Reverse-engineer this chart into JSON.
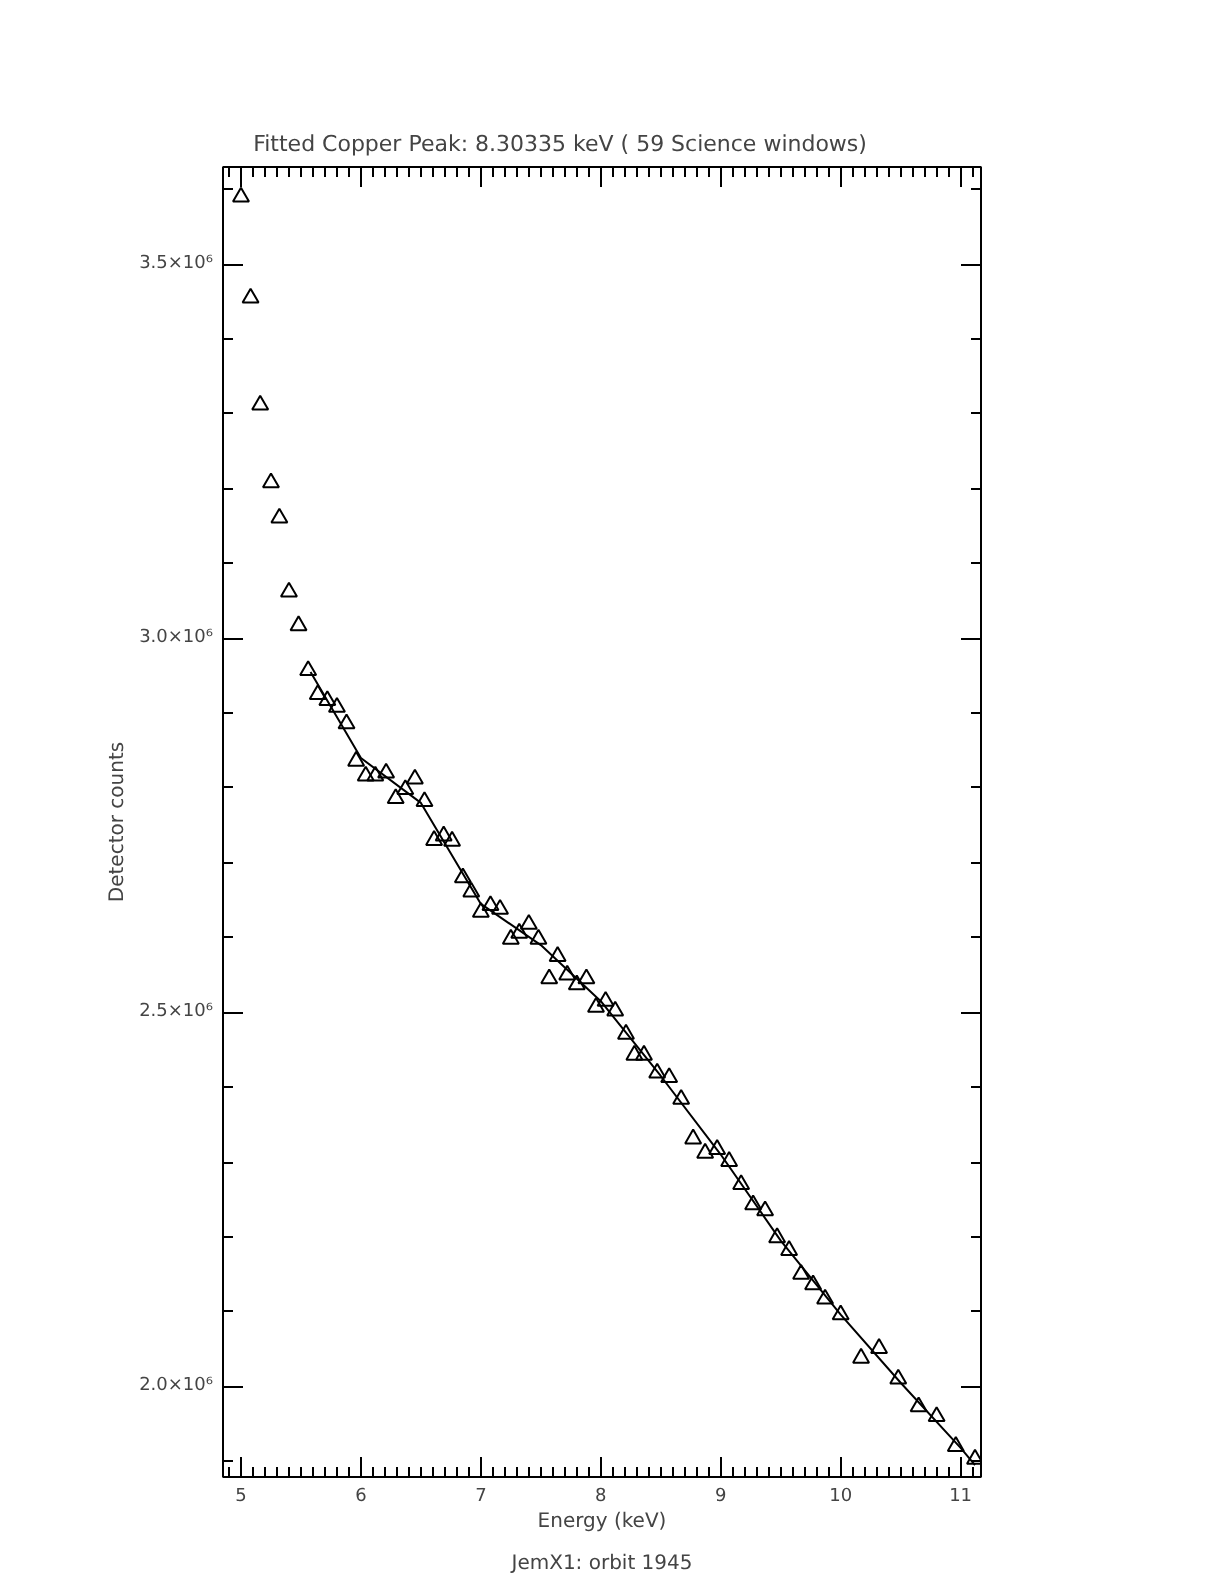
{
  "chart_data": {
    "type": "scatter",
    "title": "Fitted Copper Peak:        8.30335 keV (      59 Science windows)",
    "xlabel": "Energy (keV)",
    "ylabel": "Detector counts",
    "annotations": [
      "JemX1: orbit 1945"
    ],
    "xlim": [
      4.85,
      11.17
    ],
    "ylim": [
      1879000,
      3630000
    ],
    "xticks": [
      {
        "value": 4.9,
        "label": null
      },
      5,
      {
        "value": 5.1,
        "label": null
      },
      {
        "value": 5.2,
        "label": null
      },
      {
        "value": 5.3,
        "label": null
      },
      {
        "value": 5.4,
        "label": null
      },
      {
        "value": 5.5,
        "label": null
      },
      {
        "value": 5.6,
        "label": null
      },
      {
        "value": 5.7,
        "label": null
      },
      {
        "value": 5.8,
        "label": null
      },
      {
        "value": 5.9,
        "label": null
      },
      6,
      {
        "value": 6.1,
        "label": null
      },
      {
        "value": 6.2,
        "label": null
      },
      {
        "value": 6.3,
        "label": null
      },
      {
        "value": 6.4,
        "label": null
      },
      {
        "value": 6.5,
        "label": null
      },
      {
        "value": 6.6,
        "label": null
      },
      {
        "value": 6.7,
        "label": null
      },
      {
        "value": 6.8,
        "label": null
      },
      {
        "value": 6.9,
        "label": null
      },
      7,
      {
        "value": 7.1,
        "label": null
      },
      {
        "value": 7.2,
        "label": null
      },
      {
        "value": 7.3,
        "label": null
      },
      {
        "value": 7.4,
        "label": null
      },
      {
        "value": 7.5,
        "label": null
      },
      {
        "value": 7.6,
        "label": null
      },
      {
        "value": 7.7,
        "label": null
      },
      {
        "value": 7.8,
        "label": null
      },
      {
        "value": 7.9,
        "label": null
      },
      8,
      {
        "value": 8.1,
        "label": null
      },
      {
        "value": 8.2,
        "label": null
      },
      {
        "value": 8.3,
        "label": null
      },
      {
        "value": 8.4,
        "label": null
      },
      {
        "value": 8.5,
        "label": null
      },
      {
        "value": 8.6,
        "label": null
      },
      {
        "value": 8.7,
        "label": null
      },
      {
        "value": 8.8,
        "label": null
      },
      {
        "value": 8.9,
        "label": null
      },
      9,
      {
        "value": 9.1,
        "label": null
      },
      {
        "value": 9.2,
        "label": null
      },
      {
        "value": 9.3,
        "label": null
      },
      {
        "value": 9.4,
        "label": null
      },
      {
        "value": 9.5,
        "label": null
      },
      {
        "value": 9.6,
        "label": null
      },
      {
        "value": 9.7,
        "label": null
      },
      {
        "value": 9.8,
        "label": null
      },
      {
        "value": 9.9,
        "label": null
      },
      10,
      {
        "value": 10.1,
        "label": null
      },
      {
        "value": 10.2,
        "label": null
      },
      {
        "value": 10.3,
        "label": null
      },
      {
        "value": 10.4,
        "label": null
      },
      {
        "value": 10.5,
        "label": null
      },
      {
        "value": 10.6,
        "label": null
      },
      {
        "value": 10.7,
        "label": null
      },
      {
        "value": 10.8,
        "label": null
      },
      {
        "value": 10.9,
        "label": null
      },
      11,
      {
        "value": 11.1,
        "label": null
      }
    ],
    "yticks": [
      {
        "value": 1900000,
        "label": null
      },
      {
        "value": 2000000,
        "label": "2.0×10⁶"
      },
      {
        "value": 2100000,
        "label": null
      },
      {
        "value": 2200000,
        "label": null
      },
      {
        "value": 2300000,
        "label": null
      },
      {
        "value": 2400000,
        "label": null
      },
      {
        "value": 2500000,
        "label": "2.5×10⁶"
      },
      {
        "value": 2600000,
        "label": null
      },
      {
        "value": 2700000,
        "label": null
      },
      {
        "value": 2800000,
        "label": null
      },
      {
        "value": 2900000,
        "label": null
      },
      {
        "value": 3000000,
        "label": "3.0×10⁶"
      },
      {
        "value": 3100000,
        "label": null
      },
      {
        "value": 3200000,
        "label": null
      },
      {
        "value": 3300000,
        "label": null
      },
      {
        "value": 3400000,
        "label": null
      },
      {
        "value": 3500000,
        "label": "3.5×10⁶"
      },
      {
        "value": 3600000,
        "label": null
      }
    ],
    "grid": false,
    "series": [
      {
        "marker": "triangle",
        "color": "#000000",
        "x": [
          5.0,
          5.08,
          5.16,
          5.25,
          5.32,
          5.4,
          5.48,
          5.56,
          5.64,
          5.72,
          5.8,
          5.88,
          5.96,
          6.04,
          6.12,
          6.21,
          6.29,
          6.37,
          6.45,
          6.53,
          6.61,
          6.69,
          6.76,
          6.85,
          6.92,
          7.0,
          7.08,
          7.16,
          7.25,
          7.32,
          7.4,
          7.48,
          7.57,
          7.64,
          7.72,
          7.8,
          7.88,
          7.96,
          8.04,
          8.12,
          8.21,
          8.28,
          8.36,
          8.47,
          8.57,
          8.67,
          8.77,
          8.87,
          8.97,
          9.07,
          9.17,
          9.27,
          9.37,
          9.47,
          9.57,
          9.67,
          9.77,
          9.87,
          10.0,
          10.17,
          10.32,
          10.48,
          10.65,
          10.8,
          10.96,
          11.12
        ],
        "values": [
          3590000,
          3455000,
          3312000,
          3208000,
          3161000,
          3062000,
          3017000,
          2957000,
          2925000,
          2917000,
          2908000,
          2886000,
          2836000,
          2816000,
          2816000,
          2820000,
          2786000,
          2798000,
          2812000,
          2782000,
          2730000,
          2736000,
          2729000,
          2680000,
          2661000,
          2634000,
          2643000,
          2638000,
          2598000,
          2606000,
          2618000,
          2598000,
          2545000,
          2575000,
          2550000,
          2537000,
          2545000,
          2507000,
          2515000,
          2502000,
          2471000,
          2443000,
          2443000,
          2419000,
          2413000,
          2384000,
          2331000,
          2312000,
          2317000,
          2301000,
          2270000,
          2243000,
          2235000,
          2199000,
          2182000,
          2150000,
          2136000,
          2117000,
          2096000,
          2038000,
          2051000,
          2010000,
          1973000,
          1960000,
          1920000,
          1903000
        ]
      },
      {
        "type": "line",
        "line_style": "solid",
        "color": "#000000",
        "x": [
          5.58,
          6.0,
          6.5,
          7.0,
          7.5,
          8.0,
          8.5,
          9.0,
          9.5,
          10.0,
          10.5,
          11.0,
          11.12
        ],
        "values": [
          2955000,
          2840000,
          2780000,
          2645000,
          2590000,
          2515000,
          2415000,
          2310000,
          2195000,
          2096000,
          2005000,
          1918000,
          1895000
        ]
      }
    ]
  }
}
